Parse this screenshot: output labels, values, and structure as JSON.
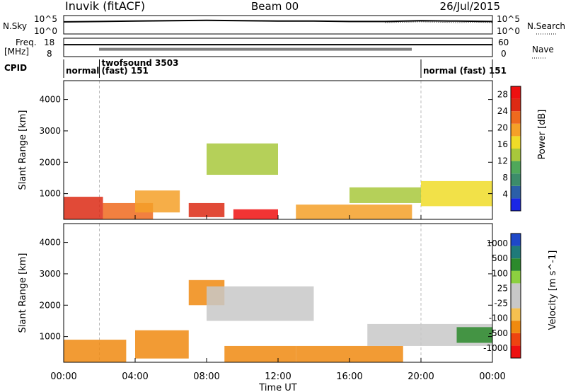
{
  "header": {
    "site": "Inuvik (fitACF)",
    "beam": "Beam 00",
    "date": "26/Jul/2015"
  },
  "colors": {
    "power_scale": [
      "#1a26e6",
      "#2b5fa8",
      "#3c8c6a",
      "#4fa85a",
      "#a8c83c",
      "#f0dc28",
      "#f5a028",
      "#ee6a1e",
      "#dc2a14",
      "#ee1010"
    ],
    "velocity_scale": [
      "#ee1010",
      "#ee4410",
      "#f08a10",
      "#f5c050",
      "#c8c8c8",
      "#c8c8c8",
      "#8cd040",
      "#2c8a2c",
      "#1f7a7a",
      "#1e48c8"
    ]
  },
  "chart_data": [
    {
      "type": "line",
      "panel": "noise",
      "labels_left": [
        "N.Sky",
        "10^5",
        "10^0"
      ],
      "labels_right": [
        "10^5",
        "10^0",
        "N.Search"
      ],
      "ylim": [
        0,
        5
      ],
      "series": [
        {
          "name": "N.Sky",
          "x": [
            0,
            2,
            4,
            6,
            8,
            10,
            12,
            14,
            16,
            18,
            20,
            22,
            24
          ],
          "y": [
            3.3,
            3.4,
            3.5,
            3.6,
            3.7,
            3.6,
            3.5,
            3.5,
            3.4,
            3.4,
            3.6,
            3.5,
            3.4
          ]
        },
        {
          "name": "N.Search",
          "x": [
            18,
            19,
            20,
            21,
            22,
            23,
            24
          ],
          "y": [
            3.1,
            3.2,
            3.3,
            3.2,
            3.1,
            3.2,
            3.1
          ]
        }
      ]
    },
    {
      "type": "line",
      "panel": "frequency",
      "labels_left": [
        "Freq.",
        "[MHz]",
        "18",
        "8"
      ],
      "labels_right": [
        "60",
        "0",
        "Nave"
      ],
      "ylim": [
        8,
        18
      ],
      "series": [
        {
          "name": "Freq",
          "x": [
            0,
            24
          ],
          "y": [
            14.5,
            14.5
          ]
        },
        {
          "name": "Nave",
          "x": [
            2,
            19.5
          ],
          "y": [
            12,
            12
          ]
        }
      ]
    },
    {
      "type": "table",
      "panel": "cpid",
      "label": "CPID",
      "segments": [
        {
          "start": 0,
          "end": 2,
          "label": "normal"
        },
        {
          "start": 2,
          "end": 20,
          "label": "twofsound 3503",
          "sublabel": "(fast) 151"
        },
        {
          "start": 20,
          "end": 24,
          "label": "normal (fast) 151"
        }
      ]
    },
    {
      "type": "heatmap",
      "panel": "power",
      "ylabel": "Slant Range [km]",
      "xlim": [
        0,
        24
      ],
      "ylim": [
        180,
        4600
      ],
      "yticks": [
        1000,
        2000,
        3000,
        4000
      ],
      "colorbar": {
        "label": "Power [dB]",
        "ticks": [
          4,
          8,
          12,
          16,
          20,
          24,
          28
        ],
        "range": [
          0,
          30
        ]
      },
      "regions": [
        {
          "t0": 0,
          "t1": 2.2,
          "r0": 180,
          "r1": 900,
          "v": 26
        },
        {
          "t0": 2.2,
          "t1": 5,
          "r0": 180,
          "r1": 700,
          "v": 22
        },
        {
          "t0": 4,
          "t1": 6.5,
          "r0": 400,
          "r1": 1100,
          "v": 18
        },
        {
          "t0": 7,
          "t1": 9,
          "r0": 250,
          "r1": 700,
          "v": 24
        },
        {
          "t0": 8,
          "t1": 12,
          "r0": 1600,
          "r1": 2600,
          "v": 14
        },
        {
          "t0": 9.5,
          "t1": 12,
          "r0": 180,
          "r1": 500,
          "v": 29
        },
        {
          "t0": 13,
          "t1": 19.5,
          "r0": 180,
          "r1": 650,
          "v": 20
        },
        {
          "t0": 16,
          "t1": 20,
          "r0": 700,
          "r1": 1200,
          "v": 12
        },
        {
          "t0": 20,
          "t1": 24,
          "r0": 600,
          "r1": 1400,
          "v": 16
        }
      ]
    },
    {
      "type": "heatmap",
      "panel": "velocity",
      "ylabel": "Slant Range [km]",
      "xlabel": "Time UT",
      "xlim": [
        0,
        24
      ],
      "ylim": [
        180,
        4600
      ],
      "xticks": [
        "00:00",
        "04:00",
        "08:00",
        "12:00",
        "16:00",
        "20:00",
        "00:00"
      ],
      "yticks": [
        1000,
        2000,
        3000,
        4000
      ],
      "colorbar": {
        "label": "Velocity [m s^-1]",
        "ticks": [
          1000,
          500,
          100,
          25,
          -25,
          -100,
          -500,
          -1000
        ]
      },
      "regions": [
        {
          "t0": 0,
          "t1": 3.5,
          "r0": 180,
          "r1": 900,
          "v": -400
        },
        {
          "t0": 4,
          "t1": 7,
          "r0": 300,
          "r1": 1200,
          "v": -300
        },
        {
          "t0": 7,
          "t1": 9,
          "r0": 2000,
          "r1": 2800,
          "v": -150
        },
        {
          "t0": 8,
          "t1": 14,
          "r0": 1500,
          "r1": 2600,
          "v": 0
        },
        {
          "t0": 9,
          "t1": 13,
          "r0": 180,
          "r1": 700,
          "v": -300
        },
        {
          "t0": 13,
          "t1": 19,
          "r0": 180,
          "r1": 700,
          "v": -200
        },
        {
          "t0": 17,
          "t1": 24,
          "r0": 700,
          "r1": 1400,
          "v": 0
        },
        {
          "t0": 22,
          "t1": 24,
          "r0": 800,
          "r1": 1300,
          "v": 400
        }
      ]
    }
  ]
}
